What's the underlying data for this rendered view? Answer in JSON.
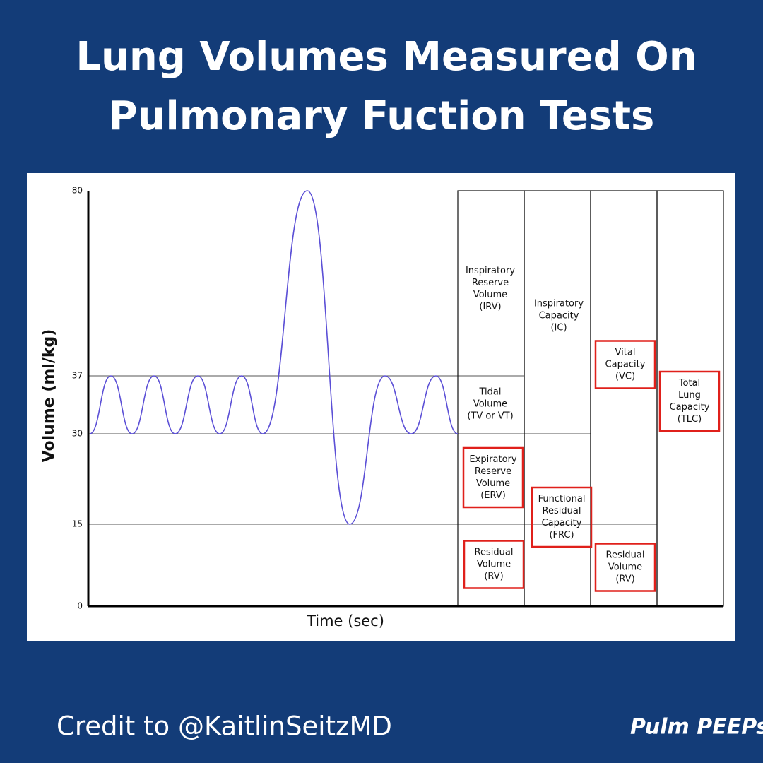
{
  "header": {
    "title": [
      "Lung Volumes Measured On",
      "Pulmonary Fuction Tests"
    ]
  },
  "chart_data": {
    "type": "line",
    "ylabel": "Volume (ml/kg)",
    "xlabel": "Time (sec)",
    "ylim": [
      0,
      80
    ],
    "yticks": [
      0,
      15,
      30,
      37,
      80
    ],
    "color": "#5b4fd6",
    "values": [
      30,
      37,
      30,
      37,
      30,
      37,
      30,
      37,
      30,
      80,
      15,
      37,
      30,
      37,
      30
    ],
    "annotations": [
      {
        "text": [
          "Inspiratory",
          "Reserve",
          "Volume",
          "(IRV)"
        ],
        "boxed": false
      },
      {
        "text": [
          "Tidal",
          "Volume",
          "(TV or VT)"
        ],
        "boxed": false
      },
      {
        "text": [
          "Expiratory",
          "Reserve",
          "Volume",
          "(ERV)"
        ],
        "boxed": true
      },
      {
        "text": [
          "Residual",
          "Volume",
          "(RV)"
        ],
        "boxed": true
      },
      {
        "text": [
          "Inspiratory",
          "Capacity",
          "(IC)"
        ],
        "boxed": false
      },
      {
        "text": [
          "Functional",
          "Residual",
          "Capacity",
          "(FRC)"
        ],
        "boxed": true
      },
      {
        "text": [
          "Vital",
          "Capacity",
          "(VC)"
        ],
        "boxed": true
      },
      {
        "text": [
          "Residual",
          "Volume",
          "(RV)"
        ],
        "boxed": true
      },
      {
        "text": [
          "Total",
          "Lung",
          "Capacity",
          "(TLC)"
        ],
        "boxed": true
      }
    ],
    "box_color": "#e0201b"
  },
  "footer": {
    "credit": "Credit to @KaitlinSeitzMD",
    "logo": "Pulm PEEPs"
  }
}
